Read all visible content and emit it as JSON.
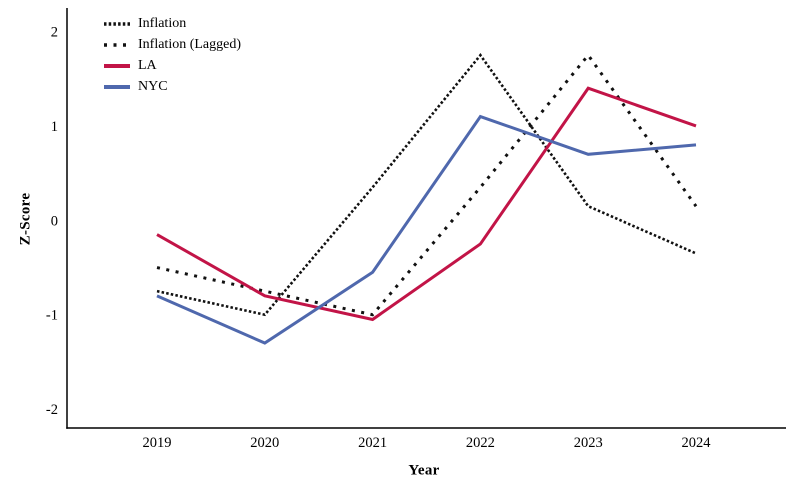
{
  "chart_data": {
    "type": "line",
    "categories": [
      "2019",
      "2020",
      "2021",
      "2022",
      "2023",
      "2024"
    ],
    "series": [
      {
        "name": "Inflation",
        "style": "dotted-dense",
        "color": "#111111",
        "values": [
          -0.75,
          -1.0,
          0.35,
          1.75,
          0.15,
          -0.35
        ]
      },
      {
        "name": "Inflation (Lagged)",
        "style": "dotted-sparse",
        "color": "#111111",
        "values": [
          -0.5,
          -0.75,
          -1.0,
          0.35,
          1.75,
          0.15
        ]
      },
      {
        "name": "LA",
        "style": "solid",
        "color": "#c21447",
        "values": [
          -0.15,
          -0.8,
          -1.05,
          -0.25,
          1.4,
          1.0
        ]
      },
      {
        "name": "NYC",
        "style": "solid",
        "color": "#4f68ad",
        "values": [
          -0.8,
          -1.3,
          -0.55,
          1.1,
          0.7,
          0.8
        ]
      }
    ],
    "title": "",
    "xlabel": "Year",
    "ylabel": "Z-Score",
    "ylim": [
      -2.2,
      2.25
    ],
    "yticks": [
      -2,
      -1,
      0,
      1,
      2
    ],
    "legend_position": "top-left",
    "grid": false,
    "axis_color": "#000000"
  }
}
